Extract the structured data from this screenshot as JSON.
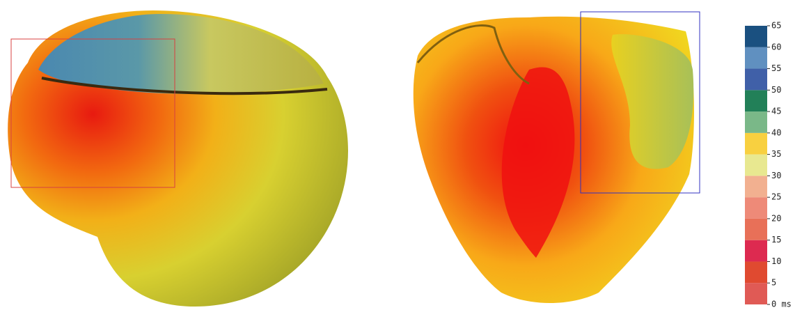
{
  "colorbar": {
    "ticks": [
      {
        "value": 0,
        "label": "0 ms"
      },
      5,
      10,
      15,
      20,
      25,
      30,
      35,
      40,
      45,
      50,
      55,
      60,
      65
    ],
    "colors": [
      "#e05a55",
      "#e04a30",
      "#dd2a50",
      "#e87058",
      "#ee8a78",
      "#f2b090",
      "#e8e890",
      "#f8d040",
      "#7ab888",
      "#228058",
      "#4060a8",
      "#6090c0",
      "#1a5080"
    ]
  }
}
